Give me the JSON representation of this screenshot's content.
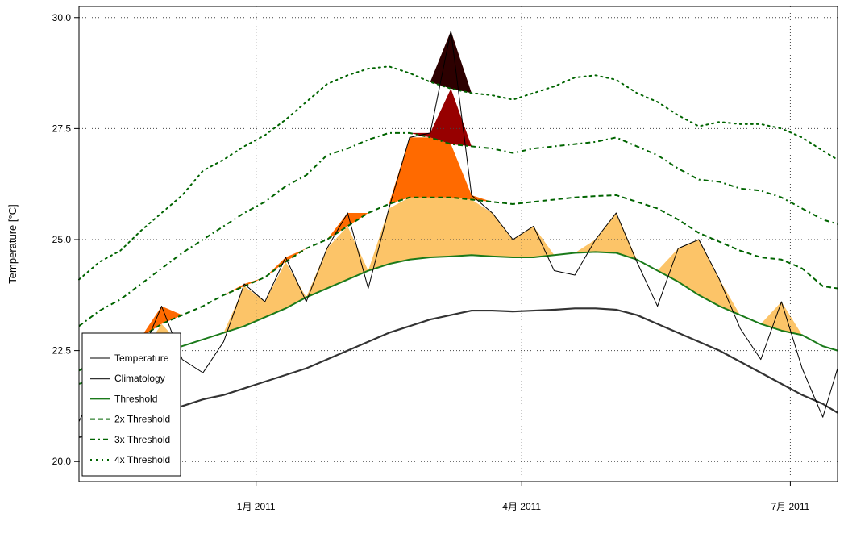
{
  "chart_data": {
    "type": "line",
    "title": "",
    "xlabel": "",
    "ylabel": "Temperature [°C]",
    "ylim": [
      19.55,
      30.25
    ],
    "y_ticks": [
      20.0,
      22.5,
      25.0,
      27.5,
      30.0
    ],
    "y_tick_labels": [
      "20.0",
      "22.5",
      "25.0",
      "27.5",
      "30.0"
    ],
    "x_range": [
      "2010-11-02",
      "2011-07-17"
    ],
    "x_ticks": [
      {
        "date": "2011-01-01",
        "label": "1月 2011"
      },
      {
        "date": "2011-04-01",
        "label": "4月 2011"
      },
      {
        "date": "2011-07-01",
        "label": "7月 2011"
      }
    ],
    "grid": true,
    "legend_position": "bottom-left",
    "x": [
      "2010-11-02",
      "2010-11-09",
      "2010-11-16",
      "2010-11-23",
      "2010-11-30",
      "2010-12-07",
      "2010-12-14",
      "2010-12-21",
      "2010-12-28",
      "2011-01-04",
      "2011-01-11",
      "2011-01-18",
      "2011-01-25",
      "2011-02-01",
      "2011-02-08",
      "2011-02-15",
      "2011-02-22",
      "2011-03-01",
      "2011-03-08",
      "2011-03-15",
      "2011-03-22",
      "2011-03-29",
      "2011-04-05",
      "2011-04-12",
      "2011-04-19",
      "2011-04-26",
      "2011-05-03",
      "2011-05-10",
      "2011-05-17",
      "2011-05-24",
      "2011-05-31",
      "2011-06-07",
      "2011-06-14",
      "2011-06-21",
      "2011-06-28",
      "2011-07-05",
      "2011-07-12",
      "2011-07-17"
    ],
    "series": [
      {
        "name": "Temperature",
        "color": "#000000",
        "style": "solid-thin",
        "values": [
          20.9,
          21.9,
          22.6,
          22.4,
          23.5,
          22.3,
          22.0,
          22.7,
          24.0,
          23.6,
          24.6,
          23.6,
          24.8,
          25.6,
          23.9,
          25.7,
          27.3,
          27.4,
          29.7,
          26.0,
          25.6,
          25.0,
          25.3,
          24.3,
          24.2,
          25.0,
          25.6,
          24.5,
          23.5,
          24.8,
          25.0,
          24.1,
          23.0,
          22.3,
          23.6,
          22.1,
          21.0,
          22.1
        ]
      },
      {
        "name": "Climatology",
        "color": "#333333",
        "style": "solid-thick",
        "values": [
          20.55,
          20.65,
          20.8,
          20.95,
          21.1,
          21.25,
          21.4,
          21.5,
          21.65,
          21.8,
          21.95,
          22.1,
          22.3,
          22.5,
          22.7,
          22.9,
          23.05,
          23.2,
          23.3,
          23.4,
          23.4,
          23.38,
          23.4,
          23.42,
          23.45,
          23.45,
          23.42,
          23.3,
          23.1,
          22.9,
          22.7,
          22.5,
          22.25,
          22.0,
          21.75,
          21.5,
          21.3,
          21.1
        ]
      },
      {
        "name": "Threshold",
        "color": "#1a7a1a",
        "style": "solid",
        "values": [
          21.75,
          21.9,
          22.0,
          22.2,
          22.45,
          22.6,
          22.75,
          22.9,
          23.05,
          23.25,
          23.45,
          23.7,
          23.9,
          24.1,
          24.3,
          24.45,
          24.55,
          24.6,
          24.62,
          24.65,
          24.62,
          24.6,
          24.6,
          24.65,
          24.7,
          24.72,
          24.7,
          24.55,
          24.3,
          24.05,
          23.75,
          23.5,
          23.3,
          23.1,
          22.95,
          22.85,
          22.6,
          22.5
        ]
      },
      {
        "name": "2x Threshold",
        "color": "#006400",
        "style": "dashed",
        "values": [
          22.05,
          22.3,
          22.55,
          22.8,
          23.1,
          23.3,
          23.5,
          23.75,
          23.95,
          24.15,
          24.5,
          24.8,
          25.0,
          25.3,
          25.6,
          25.8,
          25.95,
          25.95,
          25.95,
          25.9,
          25.85,
          25.8,
          25.85,
          25.9,
          25.95,
          25.98,
          26.0,
          25.85,
          25.7,
          25.45,
          25.15,
          24.95,
          24.75,
          24.6,
          24.55,
          24.35,
          23.95,
          23.9
        ]
      },
      {
        "name": "3x Threshold",
        "color": "#006400",
        "style": "dash-dot",
        "values": [
          23.05,
          23.4,
          23.65,
          24.0,
          24.35,
          24.7,
          25.0,
          25.3,
          25.6,
          25.85,
          26.2,
          26.45,
          26.9,
          27.05,
          27.25,
          27.4,
          27.4,
          27.3,
          27.15,
          27.1,
          27.05,
          26.95,
          27.05,
          27.1,
          27.15,
          27.2,
          27.3,
          27.1,
          26.9,
          26.6,
          26.35,
          26.3,
          26.15,
          26.1,
          25.95,
          25.7,
          25.45,
          25.35
        ]
      },
      {
        "name": "4x Threshold",
        "color": "#006400",
        "style": "dotted",
        "values": [
          24.1,
          24.5,
          24.75,
          25.2,
          25.6,
          26.0,
          26.55,
          26.8,
          27.1,
          27.35,
          27.7,
          28.1,
          28.5,
          28.7,
          28.85,
          28.9,
          28.75,
          28.55,
          28.4,
          28.3,
          28.25,
          28.15,
          28.3,
          28.45,
          28.65,
          28.7,
          28.6,
          28.3,
          28.1,
          27.8,
          27.55,
          27.65,
          27.6,
          27.6,
          27.5,
          27.3,
          27.0,
          26.8
        ]
      }
    ],
    "fill_bands": [
      {
        "from": "Threshold",
        "to": "2x Threshold",
        "color": "#fcc468"
      },
      {
        "from": "2x Threshold",
        "to": "3x Threshold",
        "color": "#ff6a00"
      },
      {
        "from": "3x Threshold",
        "to": "4x Threshold",
        "color": "#970000"
      },
      {
        "from": "4x Threshold",
        "to": "above",
        "color": "#2d0000"
      }
    ]
  }
}
